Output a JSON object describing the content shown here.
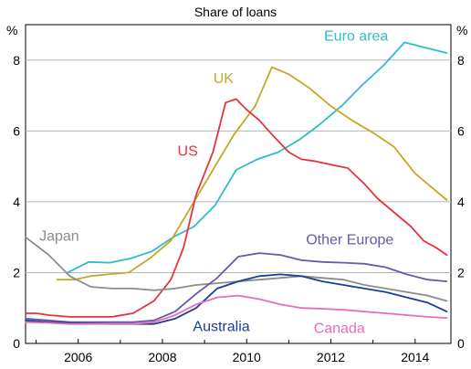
{
  "chart_data": {
    "type": "line",
    "title": "Share of loans",
    "ylabel_left": "%",
    "ylabel_right": "%",
    "ylim": [
      0,
      9
    ],
    "yticks": [
      0,
      2,
      4,
      6,
      8
    ],
    "xlim": [
      2004.75,
      2014.85
    ],
    "xticks": [
      2006,
      2008,
      2010,
      2012,
      2014
    ],
    "grid": "horizontal",
    "series": [
      {
        "name": "Euro area",
        "color": "#2ebdc9",
        "x": [
          2005.75,
          2006.25,
          2006.75,
          2007.25,
          2007.75,
          2008.25,
          2008.75,
          2009.25,
          2009.75,
          2010.25,
          2010.75,
          2011.25,
          2011.75,
          2012.25,
          2012.75,
          2013.25,
          2013.75,
          2014.25,
          2014.75
        ],
        "y": [
          2.0,
          2.3,
          2.28,
          2.4,
          2.6,
          3.0,
          3.3,
          3.9,
          4.9,
          5.2,
          5.4,
          5.75,
          6.2,
          6.7,
          7.3,
          7.85,
          8.5,
          8.35,
          8.2
        ]
      },
      {
        "name": "UK",
        "color": "#c3a929",
        "x": [
          2005.5,
          2005.9,
          2006.3,
          2006.7,
          2007.2,
          2007.7,
          2008.2,
          2008.7,
          2009.2,
          2009.7,
          2010.2,
          2010.6,
          2011.0,
          2011.5,
          2012.0,
          2012.5,
          2013.0,
          2013.5,
          2014.0,
          2014.5,
          2014.75
        ],
        "y": [
          1.8,
          1.8,
          1.9,
          1.95,
          2.0,
          2.4,
          2.9,
          3.9,
          4.9,
          5.9,
          6.7,
          7.8,
          7.6,
          7.2,
          6.7,
          6.3,
          5.95,
          5.55,
          4.8,
          4.3,
          4.05
        ]
      },
      {
        "name": "US",
        "color": "#e8333f",
        "x": [
          2004.75,
          2005.0,
          2005.3,
          2005.8,
          2006.3,
          2006.8,
          2007.3,
          2007.8,
          2008.2,
          2008.5,
          2008.8,
          2009.2,
          2009.5,
          2009.75,
          2010.0,
          2010.3,
          2010.6,
          2011.0,
          2011.3,
          2011.6,
          2012.0,
          2012.4,
          2012.8,
          2013.1,
          2013.5,
          2013.9,
          2014.2,
          2014.5,
          2014.75
        ],
        "y": [
          0.85,
          0.85,
          0.8,
          0.75,
          0.75,
          0.75,
          0.85,
          1.2,
          1.8,
          2.7,
          4.2,
          5.4,
          6.8,
          6.9,
          6.6,
          6.3,
          5.9,
          5.4,
          5.2,
          5.15,
          5.05,
          4.95,
          4.5,
          4.1,
          3.7,
          3.3,
          2.9,
          2.7,
          2.5
        ]
      },
      {
        "name": "Japan",
        "color": "#8c8c8c",
        "x": [
          2004.75,
          2005.3,
          2005.8,
          2006.3,
          2006.8,
          2007.3,
          2007.8,
          2008.3,
          2008.8,
          2009.3,
          2009.8,
          2010.3,
          2010.8,
          2011.3,
          2011.8,
          2012.3,
          2012.8,
          2013.3,
          2013.8,
          2014.3,
          2014.75
        ],
        "y": [
          3.0,
          2.5,
          1.9,
          1.6,
          1.55,
          1.55,
          1.5,
          1.55,
          1.65,
          1.7,
          1.75,
          1.8,
          1.85,
          1.9,
          1.85,
          1.8,
          1.65,
          1.55,
          1.45,
          1.35,
          1.2
        ]
      },
      {
        "name": "Other Europe",
        "color": "#6859a9",
        "x": [
          2004.75,
          2005.3,
          2005.8,
          2006.3,
          2006.8,
          2007.3,
          2007.8,
          2008.3,
          2008.8,
          2009.3,
          2009.8,
          2010.3,
          2010.8,
          2011.3,
          2011.8,
          2012.3,
          2012.8,
          2013.3,
          2013.8,
          2014.3,
          2014.75
        ],
        "y": [
          0.7,
          0.65,
          0.6,
          0.6,
          0.6,
          0.6,
          0.65,
          0.9,
          1.4,
          1.85,
          2.45,
          2.55,
          2.5,
          2.35,
          2.3,
          2.28,
          2.25,
          2.15,
          1.95,
          1.8,
          1.75
        ]
      },
      {
        "name": "Australia",
        "color": "#1d3e95",
        "x": [
          2004.75,
          2005.3,
          2005.8,
          2006.3,
          2006.8,
          2007.3,
          2007.8,
          2008.3,
          2008.8,
          2009.3,
          2009.8,
          2010.3,
          2010.8,
          2011.3,
          2011.8,
          2012.3,
          2012.8,
          2013.3,
          2013.8,
          2014.3,
          2014.75
        ],
        "y": [
          0.65,
          0.6,
          0.58,
          0.56,
          0.55,
          0.55,
          0.55,
          0.7,
          1.0,
          1.55,
          1.75,
          1.9,
          1.95,
          1.9,
          1.75,
          1.65,
          1.55,
          1.45,
          1.3,
          1.15,
          0.9
        ]
      },
      {
        "name": "Canada",
        "color": "#e46fb8",
        "x": [
          2004.75,
          2005.3,
          2005.8,
          2006.3,
          2006.8,
          2007.3,
          2007.8,
          2008.3,
          2008.8,
          2009.3,
          2009.8,
          2010.3,
          2010.8,
          2011.3,
          2011.8,
          2012.3,
          2012.8,
          2013.3,
          2013.8,
          2014.3,
          2014.75
        ],
        "y": [
          0.6,
          0.58,
          0.55,
          0.55,
          0.55,
          0.55,
          0.6,
          0.8,
          1.1,
          1.3,
          1.35,
          1.25,
          1.1,
          1.0,
          0.98,
          0.95,
          0.9,
          0.85,
          0.8,
          0.75,
          0.72
        ]
      }
    ],
    "labels": [
      {
        "series": "Euro area",
        "text": "Euro area",
        "x": 2012.6,
        "y": 8.55,
        "anchor": "middle"
      },
      {
        "series": "UK",
        "text": "UK",
        "x": 2009.45,
        "y": 7.35,
        "anchor": "middle"
      },
      {
        "series": "US",
        "text": "US",
        "x": 2008.6,
        "y": 5.3,
        "anchor": "middle"
      },
      {
        "series": "Japan",
        "text": "Japan",
        "x": 2005.55,
        "y": 2.9,
        "anchor": "middle"
      },
      {
        "series": "Other Europe",
        "text": "Other Europe",
        "x": 2012.45,
        "y": 2.8,
        "anchor": "middle"
      },
      {
        "series": "Australia",
        "text": "Australia",
        "x": 2009.4,
        "y": 0.35,
        "anchor": "middle"
      },
      {
        "series": "Canada",
        "text": "Canada",
        "x": 2012.2,
        "y": 0.3,
        "anchor": "middle"
      }
    ]
  }
}
